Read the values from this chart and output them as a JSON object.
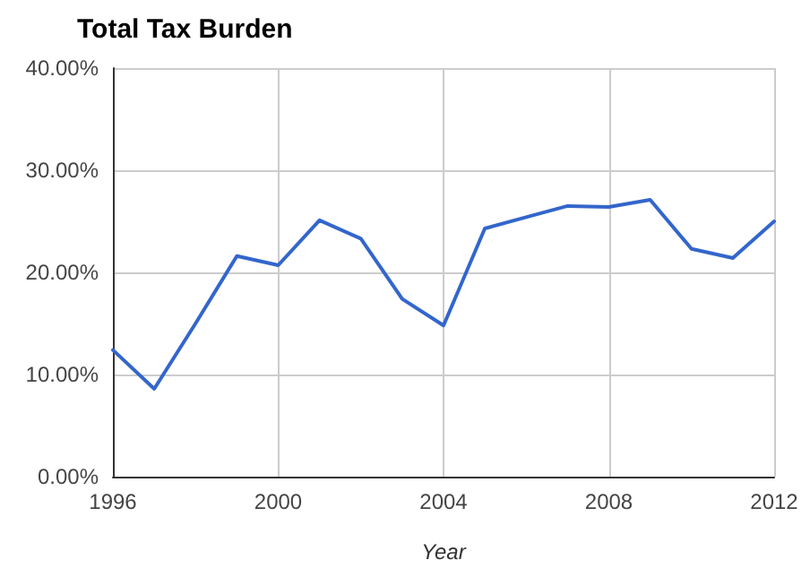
{
  "chart_data": {
    "type": "line",
    "title": "Total Tax Burden",
    "xlabel": "Year",
    "x": [
      1996,
      1997,
      1998,
      1999,
      2000,
      2001,
      2002,
      2003,
      2004,
      2005,
      2006,
      2007,
      2008,
      2009,
      2010,
      2011,
      2012
    ],
    "series": [
      {
        "color": "#3366cc",
        "values": [
          12.4,
          8.6,
          15.0,
          21.6,
          20.7,
          25.1,
          23.3,
          17.4,
          14.8,
          24.3,
          25.4,
          26.5,
          26.4,
          27.1,
          22.3,
          21.4,
          25.0
        ]
      }
    ],
    "xlim": [
      1996,
      2012
    ],
    "xticks": [
      1996,
      2000,
      2004,
      2008,
      2012
    ],
    "ylim": [
      0,
      40
    ],
    "yticks": [
      {
        "value": 0,
        "label": "0.00%"
      },
      {
        "value": 10,
        "label": "10.00%"
      },
      {
        "value": 20,
        "label": "20.00%"
      },
      {
        "value": 30,
        "label": "30.00%"
      },
      {
        "value": 40,
        "label": "40.00%"
      }
    ],
    "grid": true,
    "marker": "none",
    "line_style": "solid"
  }
}
